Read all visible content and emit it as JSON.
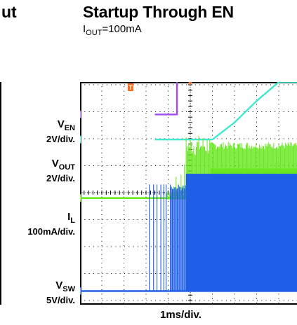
{
  "header": {
    "title": "Startup Through EN",
    "title_left_cut": "ut",
    "condition_prefix": "I",
    "condition_sub": "OUT",
    "condition_suffix": "=100mA"
  },
  "colors": {
    "ven": "#a64cf0",
    "vout": "#40e8d0",
    "il": "#66e81c",
    "vsw": "#1f5fe8",
    "trigger": "#ff6a1a"
  },
  "chart_data": {
    "type": "line",
    "title": "Startup Through EN",
    "subtitle": "IOUT=100mA",
    "xlabel": "1ms/div.",
    "divisions": {
      "x": 10,
      "y": 8
    },
    "trigger_marker": "T",
    "channels": [
      {
        "id": "3",
        "name": "V",
        "name_sub": "EN",
        "scale": "2V/div.",
        "signal": "EN step low to high"
      },
      {
        "id": "2",
        "name": "V",
        "name_sub": "OUT",
        "scale": "2V/div.",
        "signal": "output voltage soft-start ramp"
      },
      {
        "id": "4",
        "name": "I",
        "name_sub": "L",
        "scale": "100mA/div.",
        "signal": "inductor current switching ripple"
      },
      {
        "id": "1",
        "name": "V",
        "name_sub": "SW",
        "scale": "5V/div.",
        "signal": "switch node pulses"
      }
    ],
    "series": [
      {
        "channel": "3",
        "x": [
          -1.6,
          -0.6,
          -0.6,
          10
        ],
        "y": [
          2.9,
          2.9,
          6.85,
          6.85
        ]
      },
      {
        "channel": "2",
        "x": [
          -1.6,
          1.0,
          2.0,
          3.0,
          4.0,
          10
        ],
        "y": [
          1.97,
          1.97,
          2.6,
          3.4,
          4.1,
          4.1
        ]
      },
      {
        "channel": "4",
        "x": [
          -1.6,
          10
        ],
        "y": [
          -0.2,
          -0.2
        ]
      },
      {
        "channel": "1",
        "x": [
          -1.6,
          10
        ],
        "y": [
          -3.65,
          -3.65
        ]
      }
    ]
  }
}
